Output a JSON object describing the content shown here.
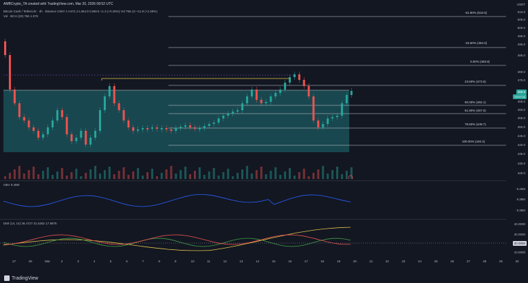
{
  "header": {
    "title": "AMBCrypto_TA created with TradingView.com, Mar 20, 2026 08:52 UTC"
  },
  "symbol": {
    "line": "Bitcoin Cash / TetherUS · 4h · Binance  O467.1 H471.3 L464.9 C469.5 +1.3 (+0.28%)  Vol 756.13 +11.9 (+1.59%)"
  },
  "volume": {
    "line": "Vol · BCH (20)  756  1.07K"
  },
  "obv": {
    "label": "OBV  9.39M"
  },
  "dmi": {
    "label": "DMI (14, 14)  36.4727  31.5282  17.9876"
  },
  "fib_levels": [
    {
      "label": "-61.80% (510.6)"
    },
    {
      "label": "-23.60% (494.0)"
    },
    {
      "label": "0.00% (483.8)"
    },
    {
      "label": "23.60% (473.6)"
    },
    {
      "label": "50.00% (462.1)"
    },
    {
      "label": "61.80% (457.0)"
    },
    {
      "label": "78.60% (449.7)"
    },
    {
      "label": "100.00% (440.4)"
    }
  ],
  "price_axis": {
    "currency": "USDT",
    "ticks": [
      "510.0",
      "505.0",
      "500.0",
      "495.0",
      "490.0",
      "485.0",
      "480.0",
      "475.0",
      "465.0",
      "460.0",
      "455.0",
      "450.0",
      "445.0",
      "440.0",
      "435.0",
      "430.0",
      "425.0"
    ],
    "current_price": "469.5",
    "current_countdown": "03:07:42"
  },
  "obv_axis": {
    "ticks": [
      "9.40M",
      "9.38M",
      "9.36M"
    ]
  },
  "dmi_axis": {
    "ticks": [
      "40.0000",
      "30.0000",
      "20.0000",
      "10.0000"
    ]
  },
  "time_axis": {
    "labels": [
      "27",
      "28",
      "Mar",
      "2",
      "3",
      "4",
      "5",
      "6",
      "7",
      "8",
      "9",
      "10",
      "11",
      "12",
      "13",
      "14",
      "15",
      "16",
      "17",
      "18",
      "19",
      "20",
      "21",
      "22",
      "23",
      "24",
      "25",
      "26",
      "27",
      "28",
      "29",
      "30"
    ]
  },
  "footer": {
    "brand": "TradingView"
  },
  "colors": {
    "up": "#26a69a",
    "down": "#ef5350",
    "zone": "#1f6f75",
    "obv": "#2962ff",
    "adx": "#e0c04a",
    "plus_di": "#43a047",
    "minus_di": "#ef5350"
  }
}
